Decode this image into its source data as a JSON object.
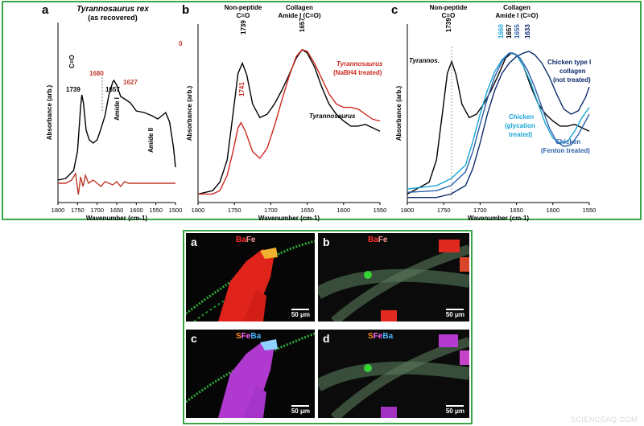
{
  "panels": [
    {
      "letter": "a",
      "title": "Tyrannosaurus rex",
      "subtitle": "(as recovered)",
      "ylabel": "Absorbance (arb.)",
      "xlabel": "Wavenumber (cm-1)"
    },
    {
      "letter": "b",
      "ylabel": "Absorbance (arb.)",
      "xlabel": "Wavenumber (cm-1)"
    },
    {
      "letter": "c",
      "ylabel": "Absorbance (arb.)",
      "xlabel": "Wavenumber (cm-1)"
    }
  ],
  "chart_data": [
    {
      "type": "line",
      "title": "Tyrannosaurus rex",
      "subtitle": "(as recovered)",
      "xlabel": "Wavenumber (cm-1)",
      "ylabel": "Absorbance (arb.)",
      "xlim": [
        1800,
        1500
      ],
      "xticks": [
        1800,
        1750,
        1700,
        1650,
        1600,
        1550,
        1500
      ],
      "series": [
        {
          "color": "#000000",
          "x": [
            1800,
            1780,
            1760,
            1750,
            1742,
            1739,
            1735,
            1728,
            1720,
            1710,
            1700,
            1690,
            1680,
            1670,
            1660,
            1657,
            1650,
            1640,
            1627,
            1615,
            1600,
            1580,
            1560,
            1545,
            1535,
            1525,
            1515,
            1505,
            1500
          ],
          "values": [
            0.02,
            0.03,
            0.08,
            0.2,
            0.48,
            0.55,
            0.5,
            0.33,
            0.27,
            0.25,
            0.27,
            0.34,
            0.42,
            0.55,
            0.63,
            0.64,
            0.61,
            0.54,
            0.52,
            0.5,
            0.45,
            0.44,
            0.42,
            0.4,
            0.42,
            0.44,
            0.38,
            0.22,
            0.1
          ]
        },
        {
          "color": "#c0392b",
          "x": [
            1800,
            1780,
            1765,
            1755,
            1748,
            1742,
            1736,
            1730,
            1722,
            1710,
            1700,
            1690,
            1680,
            1670,
            1660,
            1650,
            1640,
            1630,
            1620,
            1600,
            1580,
            1550,
            1520,
            1500
          ],
          "values": [
            0.0,
            0.0,
            0.02,
            0.06,
            -0.07,
            0.04,
            -0.02,
            0.05,
            0.0,
            0.02,
            0.0,
            -0.02,
            0.01,
            0.0,
            -0.01,
            0.01,
            -0.02,
            0.01,
            0.0,
            0.0,
            0.0,
            0.0,
            0.0,
            0.0
          ]
        }
      ],
      "annotations": [
        "C=O",
        "1739",
        "1680",
        "1657",
        "1627",
        "Amide I",
        "Amide II",
        "0"
      ]
    },
    {
      "type": "line",
      "title": "",
      "xlabel": "Wavenumber (cm-1)",
      "ylabel": "Absorbance (arb.)",
      "xlim": [
        1800,
        1550
      ],
      "xticks": [
        1800,
        1750,
        1700,
        1650,
        1600,
        1550
      ],
      "headers": [
        "Non-peptide",
        "C=O",
        "Collagen",
        "Amide I (C=O)"
      ],
      "series": [
        {
          "name": "Tyrannosaurus",
          "color": "#000000",
          "x": [
            1800,
            1780,
            1770,
            1760,
            1752,
            1745,
            1739,
            1733,
            1725,
            1715,
            1705,
            1695,
            1685,
            1675,
            1665,
            1657,
            1650,
            1640,
            1630,
            1620,
            1610,
            1600,
            1590,
            1580,
            1570,
            1560,
            1550
          ],
          "values": [
            0.05,
            0.07,
            0.12,
            0.25,
            0.52,
            0.76,
            0.82,
            0.75,
            0.58,
            0.5,
            0.52,
            0.58,
            0.66,
            0.75,
            0.85,
            0.9,
            0.88,
            0.8,
            0.68,
            0.58,
            0.52,
            0.48,
            0.45,
            0.45,
            0.46,
            0.44,
            0.42
          ]
        },
        {
          "name": "Tyrannosaurus (NaBH4 treated)",
          "color": "#cc2a1e",
          "x": [
            1800,
            1780,
            1770,
            1760,
            1752,
            1745,
            1741,
            1735,
            1725,
            1715,
            1705,
            1695,
            1685,
            1675,
            1665,
            1657,
            1650,
            1640,
            1630,
            1620,
            1610,
            1600,
            1590,
            1580,
            1570,
            1560,
            1550
          ],
          "values": [
            0.05,
            0.05,
            0.07,
            0.16,
            0.3,
            0.44,
            0.47,
            0.42,
            0.3,
            0.26,
            0.32,
            0.45,
            0.6,
            0.74,
            0.86,
            0.9,
            0.89,
            0.82,
            0.73,
            0.64,
            0.58,
            0.56,
            0.56,
            0.55,
            0.52,
            0.49,
            0.48
          ]
        }
      ],
      "annotations": [
        "1739",
        "1741",
        "1657"
      ]
    },
    {
      "type": "line",
      "title": "",
      "xlabel": "Wavenumber (cm-1)",
      "ylabel": "Absorbance (arb.)",
      "xlim": [
        1800,
        1550
      ],
      "xticks": [
        1800,
        1750,
        1700,
        1650,
        1600,
        1550
      ],
      "headers": [
        "Non-peptide",
        "C=O",
        "Collagen",
        "Amide I (C=O)"
      ],
      "series": [
        {
          "name": "Tyrannos.",
          "color": "#000000",
          "x": [
            1800,
            1770,
            1760,
            1752,
            1745,
            1739,
            1733,
            1725,
            1715,
            1705,
            1695,
            1685,
            1675,
            1665,
            1657,
            1650,
            1640,
            1630,
            1620,
            1610,
            1600,
            1590,
            1580,
            1570,
            1560,
            1550
          ],
          "values": [
            0.05,
            0.12,
            0.25,
            0.52,
            0.76,
            0.83,
            0.75,
            0.58,
            0.5,
            0.52,
            0.58,
            0.66,
            0.75,
            0.85,
            0.88,
            0.87,
            0.8,
            0.68,
            0.58,
            0.52,
            0.48,
            0.45,
            0.45,
            0.46,
            0.44,
            0.42
          ]
        },
        {
          "name": "Chicken type I collagen (not treated)",
          "color": "#0d2a6b",
          "x": [
            1800,
            1760,
            1740,
            1720,
            1710,
            1700,
            1690,
            1680,
            1670,
            1660,
            1650,
            1640,
            1633,
            1625,
            1615,
            1605,
            1595,
            1585,
            1575,
            1565,
            1555,
            1550
          ],
          "values": [
            0.03,
            0.03,
            0.05,
            0.1,
            0.2,
            0.35,
            0.52,
            0.66,
            0.76,
            0.82,
            0.86,
            0.88,
            0.89,
            0.87,
            0.82,
            0.74,
            0.64,
            0.55,
            0.52,
            0.54,
            0.62,
            0.68
          ]
        },
        {
          "name": "Chicken (glycation treated)",
          "color": "#1ba6d6",
          "x": [
            1800,
            1760,
            1740,
            1720,
            1710,
            1700,
            1690,
            1680,
            1670,
            1660,
            1650,
            1640,
            1630,
            1620,
            1610,
            1600,
            1590,
            1580,
            1570,
            1560,
            1550
          ],
          "values": [
            0.08,
            0.1,
            0.14,
            0.22,
            0.36,
            0.52,
            0.66,
            0.77,
            0.84,
            0.88,
            0.87,
            0.8,
            0.7,
            0.58,
            0.46,
            0.38,
            0.35,
            0.36,
            0.42,
            0.5,
            0.56
          ]
        },
        {
          "name": "Chicken (Fenton treated)",
          "color": "#2c5fa8",
          "x": [
            1800,
            1760,
            1740,
            1720,
            1710,
            1700,
            1690,
            1680,
            1670,
            1660,
            1655,
            1645,
            1635,
            1625,
            1615,
            1605,
            1595,
            1585,
            1575,
            1565,
            1555,
            1550
          ],
          "values": [
            0.06,
            0.07,
            0.1,
            0.18,
            0.3,
            0.46,
            0.61,
            0.74,
            0.83,
            0.88,
            0.88,
            0.85,
            0.78,
            0.68,
            0.56,
            0.44,
            0.36,
            0.33,
            0.34,
            0.4,
            0.48,
            0.52
          ]
        }
      ],
      "annotations": [
        "1739",
        "1660",
        "1657",
        "1655",
        "1633"
      ]
    }
  ],
  "micrographs": [
    {
      "letter": "a",
      "elements": [
        {
          "t": "Ba",
          "c": "#ff3030"
        },
        {
          "t": "Fe",
          "c": "#ff9a9a"
        }
      ],
      "scale": "50 μm"
    },
    {
      "letter": "b",
      "elements": [
        {
          "t": "Ba",
          "c": "#ff3030"
        },
        {
          "t": "Fe",
          "c": "#ff9a9a"
        }
      ],
      "scale": "50 μm"
    },
    {
      "letter": "c",
      "elements": [
        {
          "t": "S",
          "c": "#ff8c1a"
        },
        {
          "t": "Fe",
          "c": "#ff66ff"
        },
        {
          "t": "Ba",
          "c": "#4db8ff"
        }
      ],
      "scale": "50 μm"
    },
    {
      "letter": "d",
      "elements": [
        {
          "t": "S",
          "c": "#ff8c1a"
        },
        {
          "t": "Fe",
          "c": "#ff66ff"
        },
        {
          "t": "Ba",
          "c": "#4db8ff"
        }
      ],
      "scale": "50 μm"
    }
  ],
  "watermark": "SCIENCEAQ.COM"
}
